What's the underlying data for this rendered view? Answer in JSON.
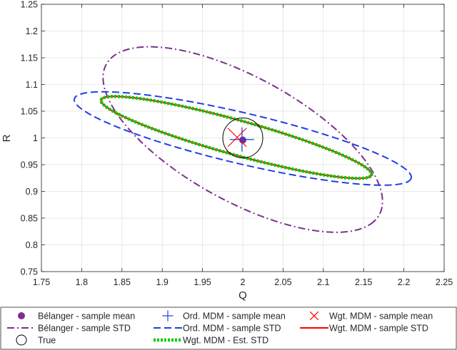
{
  "chart_data": {
    "type": "line",
    "title": "",
    "xlabel": "Q",
    "ylabel": "R",
    "xlim": [
      1.75,
      2.25
    ],
    "ylim": [
      0.75,
      1.25
    ],
    "x_ticks": [
      "1.75",
      "1.8",
      "1.85",
      "1.9",
      "1.95",
      "2",
      "2.05",
      "2.1",
      "2.15",
      "2.2",
      "2.25"
    ],
    "y_ticks": [
      "0.75",
      "0.8",
      "0.85",
      "0.9",
      "0.95",
      "1",
      "1.05",
      "1.1",
      "1.15",
      "1.2",
      "1.25"
    ],
    "grid": true,
    "legend_position": "bottom",
    "series": [
      {
        "name": "Bélanger - sample mean",
        "kind": "point",
        "marker": "filled-circle",
        "color": "#7e2f8e",
        "x": [
          2.0
        ],
        "y": [
          0.996
        ]
      },
      {
        "name": "Ord. MDM - sample mean",
        "kind": "point",
        "marker": "plus",
        "color": "#1f3fe6",
        "x": [
          1.999
        ],
        "y": [
          0.997
        ]
      },
      {
        "name": "Wgt. MDM - sample mean",
        "kind": "point",
        "marker": "cross",
        "color": "#ff0000",
        "x": [
          1.993
        ],
        "y": [
          1.001
        ]
      },
      {
        "name": "Bélanger - sample STD",
        "kind": "ellipse",
        "style": "dash-dot",
        "color": "#7e2f8e",
        "ellipse": {
          "cx": 2.0,
          "cy": 0.997,
          "a": 0.224,
          "b": 0.1,
          "angle_deg": -45
        }
      },
      {
        "name": "Ord. MDM - sample STD",
        "kind": "ellipse",
        "style": "dashed",
        "color": "#1f3fe6",
        "ellipse": {
          "cx": 2.0,
          "cy": 0.999,
          "a": 0.222,
          "b": 0.046,
          "angle_deg": -20
        }
      },
      {
        "name": "Wgt. MDM - sample STD",
        "kind": "ellipse",
        "style": "solid",
        "color": "#ff0000",
        "ellipse": {
          "cx": 1.992,
          "cy": 1.001,
          "a": 0.182,
          "b": 0.031,
          "angle_deg": -23
        }
      },
      {
        "name": "True",
        "kind": "point",
        "marker": "open-circle",
        "color": "#000000",
        "x": [
          2.0
        ],
        "y": [
          1.0
        ]
      },
      {
        "name": "Wgt. MDM - Est. STD",
        "kind": "ellipse",
        "style": "dotted",
        "color": "#00cc00",
        "ellipse": {
          "cx": 1.992,
          "cy": 1.001,
          "a": 0.182,
          "b": 0.031,
          "angle_deg": -23
        }
      }
    ]
  }
}
